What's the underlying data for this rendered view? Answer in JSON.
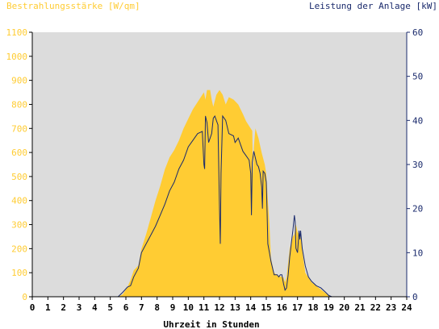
{
  "chart_data": {
    "type": "area",
    "title": "",
    "xlabel": "Uhrzeit in Stunden",
    "ylabel_left": "Bestrahlungsstärke [W/qm]",
    "ylabel_right": "Leistung der Anlage [kW]",
    "xlim": [
      0,
      24
    ],
    "ylim_left": [
      0,
      1100
    ],
    "ylim_right": [
      0,
      60
    ],
    "x_ticks": [
      "0",
      "1",
      "2",
      "3",
      "4",
      "5",
      "6",
      "7",
      "8",
      "9",
      "10",
      "11",
      "12",
      "13",
      "14",
      "15",
      "16",
      "17",
      "18",
      "19",
      "20",
      "21",
      "22",
      "23",
      "24"
    ],
    "y_ticks_left": [
      "0",
      "100",
      "200",
      "300",
      "400",
      "500",
      "600",
      "700",
      "800",
      "900",
      "1000",
      "1100"
    ],
    "y_ticks_right": [
      "0",
      "10",
      "20",
      "30",
      "40",
      "50",
      "60"
    ],
    "grid": false,
    "colors": {
      "plot_background": "#dcdcdc",
      "irradiance_fill": "#ffcc33",
      "power_line": "#1a2a6c",
      "left_axis_text": "#ffcc33",
      "right_axis_text": "#1a2a6c"
    },
    "series": [
      {
        "axis": "left",
        "style": "area",
        "x": [
          0,
          5.5,
          5.8,
          6.1,
          6.3,
          6.5,
          6.8,
          7.0,
          7.3,
          7.6,
          7.9,
          8.2,
          8.5,
          8.8,
          9.1,
          9.4,
          9.7,
          10.0,
          10.3,
          10.6,
          10.9,
          11.0,
          11.1,
          11.2,
          11.4,
          11.5,
          11.6,
          11.8,
          12.0,
          12.1,
          12.2,
          12.3,
          12.4,
          12.6,
          12.9,
          13.2,
          13.5,
          13.7,
          13.9,
          14.1,
          14.15,
          14.2,
          14.3,
          14.5,
          14.7,
          14.9,
          15.0,
          15.1,
          15.2,
          15.3,
          15.5,
          15.7,
          15.9,
          16.1,
          16.2,
          16.3,
          16.5,
          16.7,
          16.8,
          16.9,
          17.0,
          17.1,
          17.2,
          17.35,
          17.5,
          17.7,
          17.9,
          18.2,
          18.5,
          18.8,
          19.0,
          19.2,
          24
        ],
        "y": [
          0,
          0,
          10,
          40,
          70,
          110,
          130,
          200,
          260,
          330,
          400,
          460,
          530,
          580,
          610,
          650,
          700,
          740,
          780,
          810,
          840,
          850,
          820,
          860,
          860,
          820,
          790,
          840,
          860,
          850,
          840,
          820,
          800,
          830,
          820,
          800,
          760,
          730,
          710,
          690,
          500,
          620,
          700,
          660,
          600,
          550,
          510,
          400,
          300,
          160,
          100,
          90,
          85,
          80,
          60,
          80,
          200,
          250,
          260,
          300,
          270,
          260,
          250,
          170,
          100,
          80,
          60,
          45,
          30,
          15,
          5,
          0,
          0
        ]
      },
      {
        "axis": "right",
        "style": "line",
        "x": [
          0,
          5.5,
          5.8,
          6.1,
          6.3,
          6.5,
          6.8,
          7.0,
          7.3,
          7.6,
          7.9,
          8.2,
          8.5,
          8.8,
          9.1,
          9.4,
          9.7,
          10.0,
          10.3,
          10.6,
          10.9,
          11.0,
          11.05,
          11.1,
          11.2,
          11.3,
          11.5,
          11.6,
          11.7,
          11.8,
          11.9,
          12.0,
          12.05,
          12.1,
          12.2,
          12.4,
          12.6,
          12.9,
          13.0,
          13.2,
          13.5,
          13.7,
          13.9,
          14.0,
          14.05,
          14.1,
          14.2,
          14.4,
          14.5,
          14.6,
          14.7,
          14.75,
          14.8,
          14.9,
          15.0,
          15.05,
          15.1,
          15.15,
          15.2,
          15.3,
          15.5,
          15.6,
          15.7,
          15.8,
          15.9,
          16.0,
          16.1,
          16.2,
          16.3,
          16.4,
          16.5,
          16.55,
          16.6,
          16.7,
          16.8,
          16.85,
          16.9,
          17.0,
          17.1,
          17.15,
          17.2,
          17.3,
          17.5,
          17.7,
          17.9,
          18.2,
          18.5,
          18.8,
          19.0,
          19.2,
          24
        ],
        "y": [
          0,
          0,
          1.0,
          2.2,
          2.5,
          4.5,
          6.5,
          10.0,
          12.0,
          14.0,
          16.0,
          18.5,
          21.0,
          24.0,
          26.0,
          29.0,
          31.0,
          34.0,
          35.5,
          37.0,
          37.5,
          30.0,
          29.0,
          41.0,
          39.5,
          35.0,
          37.0,
          40.5,
          41.0,
          40.0,
          39.0,
          20.0,
          12.0,
          28.0,
          41.0,
          40.0,
          37.0,
          36.5,
          35.0,
          36.0,
          33.0,
          32.0,
          31.0,
          28.0,
          18.5,
          30.5,
          33.0,
          30.0,
          29.5,
          28.0,
          25.0,
          20.0,
          28.5,
          28.0,
          26.0,
          19.0,
          12.0,
          11.0,
          10.0,
          8.0,
          5.0,
          5.0,
          5.0,
          4.5,
          5.0,
          5.0,
          3.0,
          1.5,
          2.0,
          5.0,
          9.0,
          10.5,
          12.0,
          15.0,
          18.5,
          17.0,
          11.0,
          10.0,
          15.0,
          13.0,
          15.0,
          11.0,
          7.0,
          4.5,
          3.5,
          2.5,
          2.0,
          1.0,
          0.3,
          0,
          0
        ]
      }
    ]
  }
}
